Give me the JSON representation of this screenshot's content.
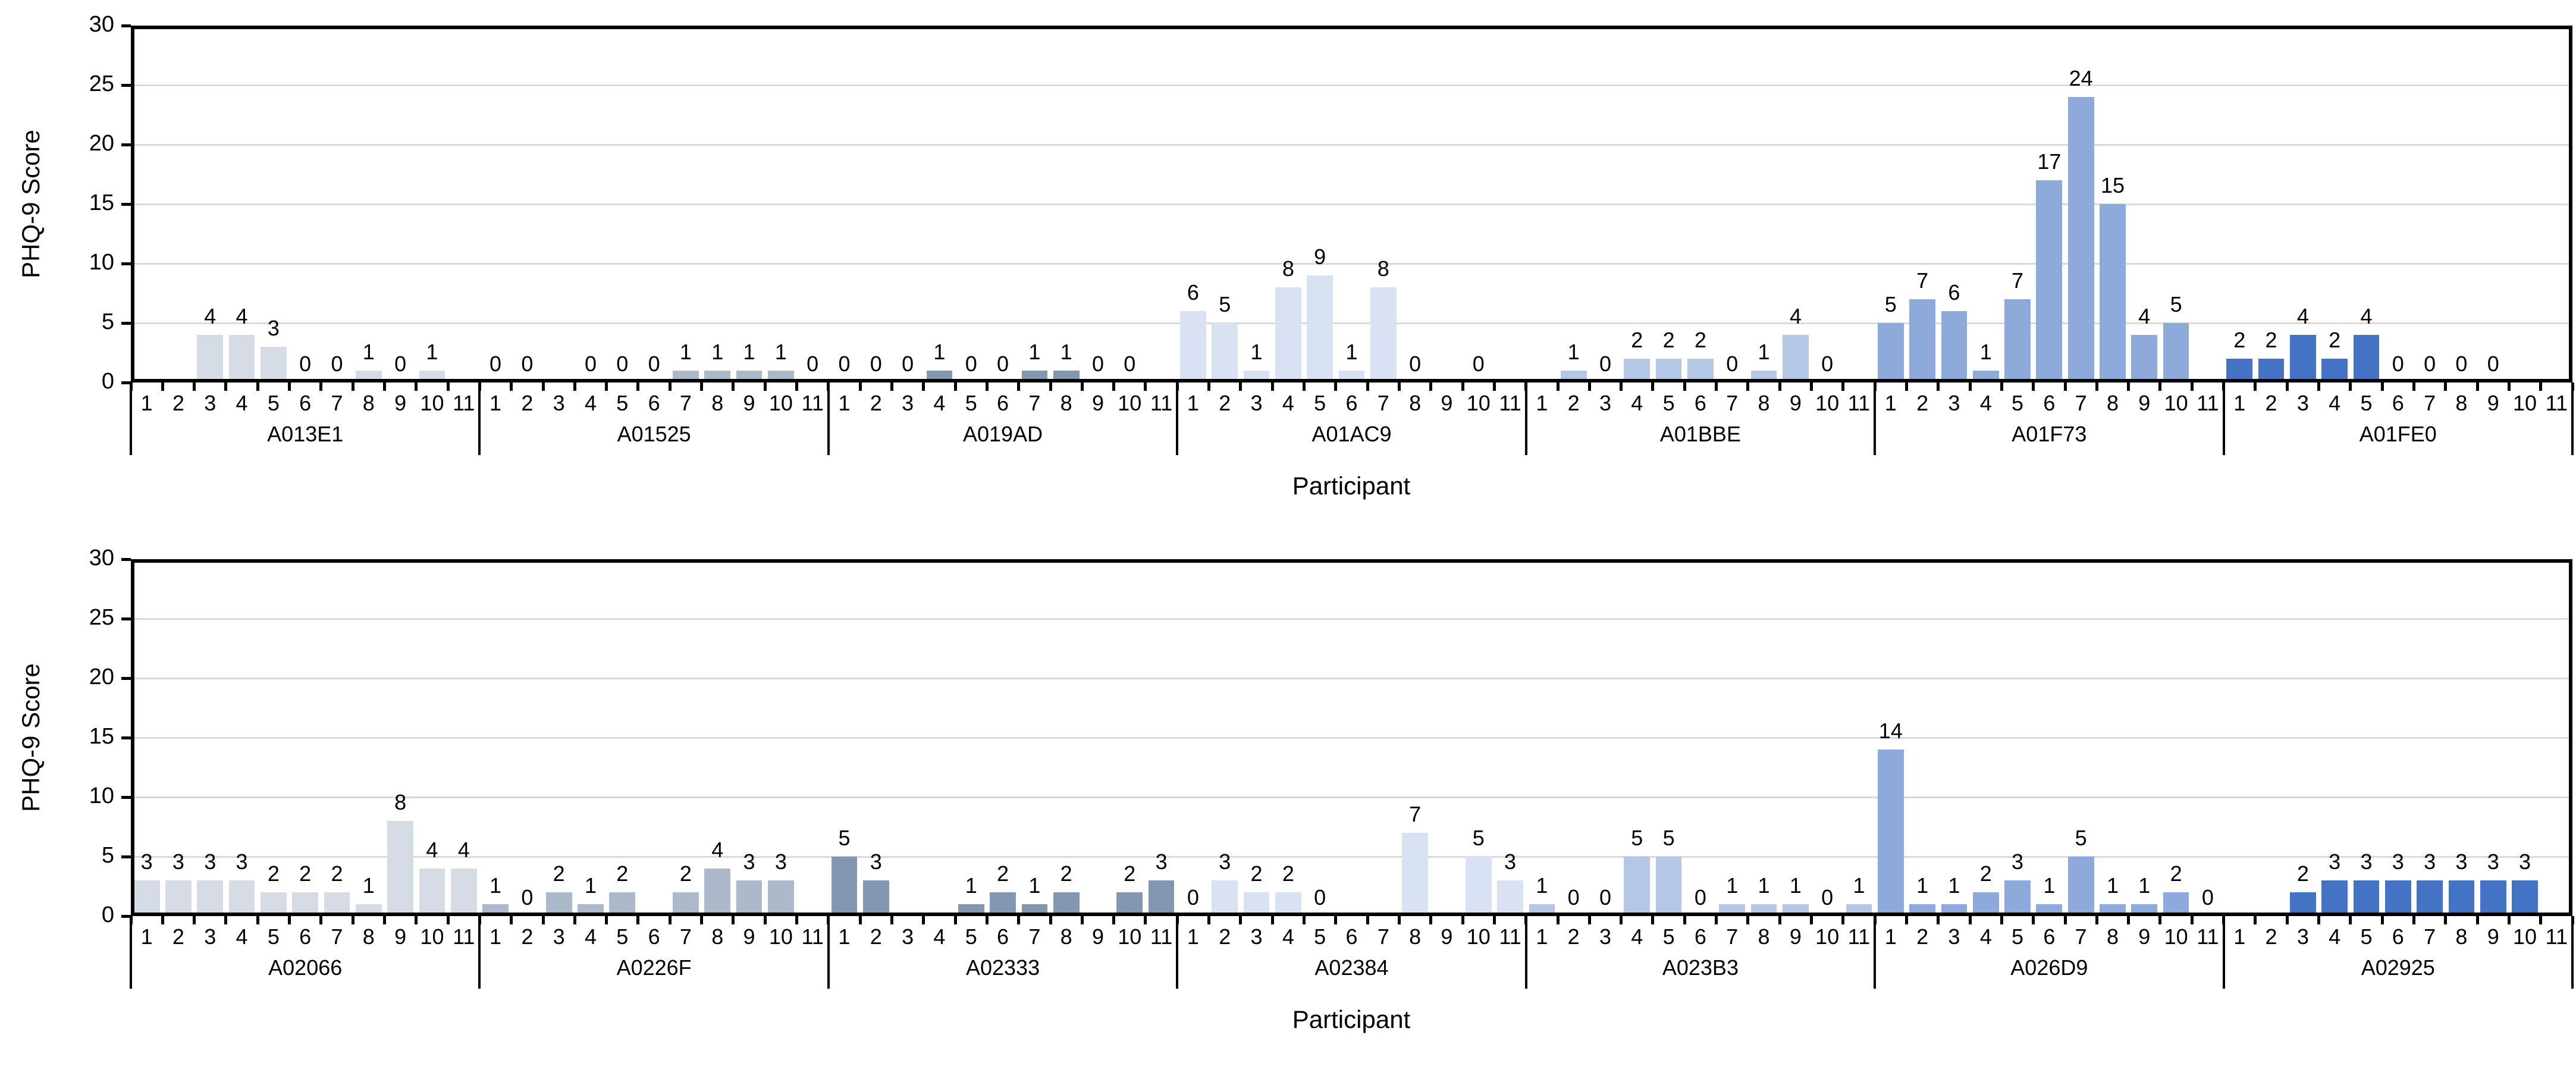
{
  "figure": {
    "background": "#FFFFFF"
  },
  "axis": {
    "line_color": "#000000",
    "gridline_color": "#D9D9D9",
    "text_color": "#000000"
  },
  "palette": [
    "#D6DCE5",
    "#ACB9CA",
    "#8497B0",
    "#D9E2F3",
    "#B4C7E7",
    "#8EAADB",
    "#4472C4"
  ],
  "x_labels": [
    "1",
    "2",
    "3",
    "4",
    "5",
    "6",
    "7",
    "8",
    "9",
    "10",
    "11"
  ],
  "y_ticks": [
    0,
    5,
    10,
    15,
    20,
    25,
    30
  ],
  "chart_data": [
    {
      "type": "bar",
      "panel": "top",
      "title": "",
      "xlabel": "Participant",
      "ylabel": "PHQ-9 Score",
      "ylim": [
        0,
        30
      ],
      "grid": true,
      "legend": "none",
      "categories": [
        "1",
        "2",
        "3",
        "4",
        "5",
        "6",
        "7",
        "8",
        "9",
        "10",
        "11"
      ],
      "groups": [
        {
          "name": "A013E1",
          "color": "#D6DCE5",
          "values": [
            null,
            null,
            4,
            4,
            3,
            0,
            0,
            1,
            0,
            1,
            null
          ]
        },
        {
          "name": "A01525",
          "color": "#ACB9CA",
          "values": [
            0,
            0,
            null,
            0,
            0,
            0,
            1,
            1,
            1,
            1,
            0
          ]
        },
        {
          "name": "A019AD",
          "color": "#8497B0",
          "values": [
            0,
            0,
            0,
            1,
            0,
            0,
            1,
            1,
            0,
            0,
            null
          ]
        },
        {
          "name": "A01AC9",
          "color": "#D9E2F3",
          "values": [
            6,
            5,
            1,
            8,
            9,
            1,
            8,
            0,
            null,
            0,
            null
          ]
        },
        {
          "name": "A01BBE",
          "color": "#B4C7E7",
          "values": [
            null,
            1,
            0,
            2,
            2,
            2,
            0,
            1,
            4,
            0,
            null
          ]
        },
        {
          "name": "A01F73",
          "color": "#8EAADB",
          "values": [
            5,
            7,
            6,
            1,
            7,
            17,
            24,
            15,
            4,
            5,
            null
          ]
        },
        {
          "name": "A01FE0",
          "color": "#4472C4",
          "values": [
            2,
            2,
            4,
            2,
            4,
            0,
            0,
            0,
            0,
            null,
            null
          ]
        }
      ]
    },
    {
      "type": "bar",
      "panel": "bottom",
      "title": "",
      "xlabel": "Participant",
      "ylabel": "PHQ-9 Score",
      "ylim": [
        0,
        30
      ],
      "grid": true,
      "legend": "none",
      "categories": [
        "1",
        "2",
        "3",
        "4",
        "5",
        "6",
        "7",
        "8",
        "9",
        "10",
        "11"
      ],
      "groups": [
        {
          "name": "A02066",
          "color": "#D6DCE5",
          "values": [
            3,
            3,
            3,
            3,
            2,
            2,
            2,
            1,
            8,
            4,
            4
          ]
        },
        {
          "name": "A0226F",
          "color": "#ACB9CA",
          "values": [
            1,
            0,
            2,
            1,
            2,
            null,
            2,
            4,
            3,
            3,
            null
          ]
        },
        {
          "name": "A02333",
          "color": "#8497B0",
          "values": [
            5,
            3,
            null,
            null,
            1,
            2,
            1,
            2,
            null,
            2,
            3
          ]
        },
        {
          "name": "A02384",
          "color": "#D9E2F3",
          "values": [
            0,
            3,
            2,
            2,
            0,
            null,
            null,
            7,
            null,
            5,
            3
          ]
        },
        {
          "name": "A023B3",
          "color": "#B4C7E7",
          "values": [
            1,
            0,
            0,
            5,
            5,
            0,
            1,
            1,
            1,
            0,
            1
          ]
        },
        {
          "name": "A026D9",
          "color": "#8EAADB",
          "values": [
            14,
            1,
            1,
            2,
            3,
            1,
            5,
            1,
            1,
            2,
            0
          ]
        },
        {
          "name": "A02925",
          "color": "#4472C4",
          "values": [
            null,
            null,
            2,
            3,
            3,
            3,
            3,
            3,
            3,
            3,
            null
          ]
        }
      ]
    }
  ]
}
